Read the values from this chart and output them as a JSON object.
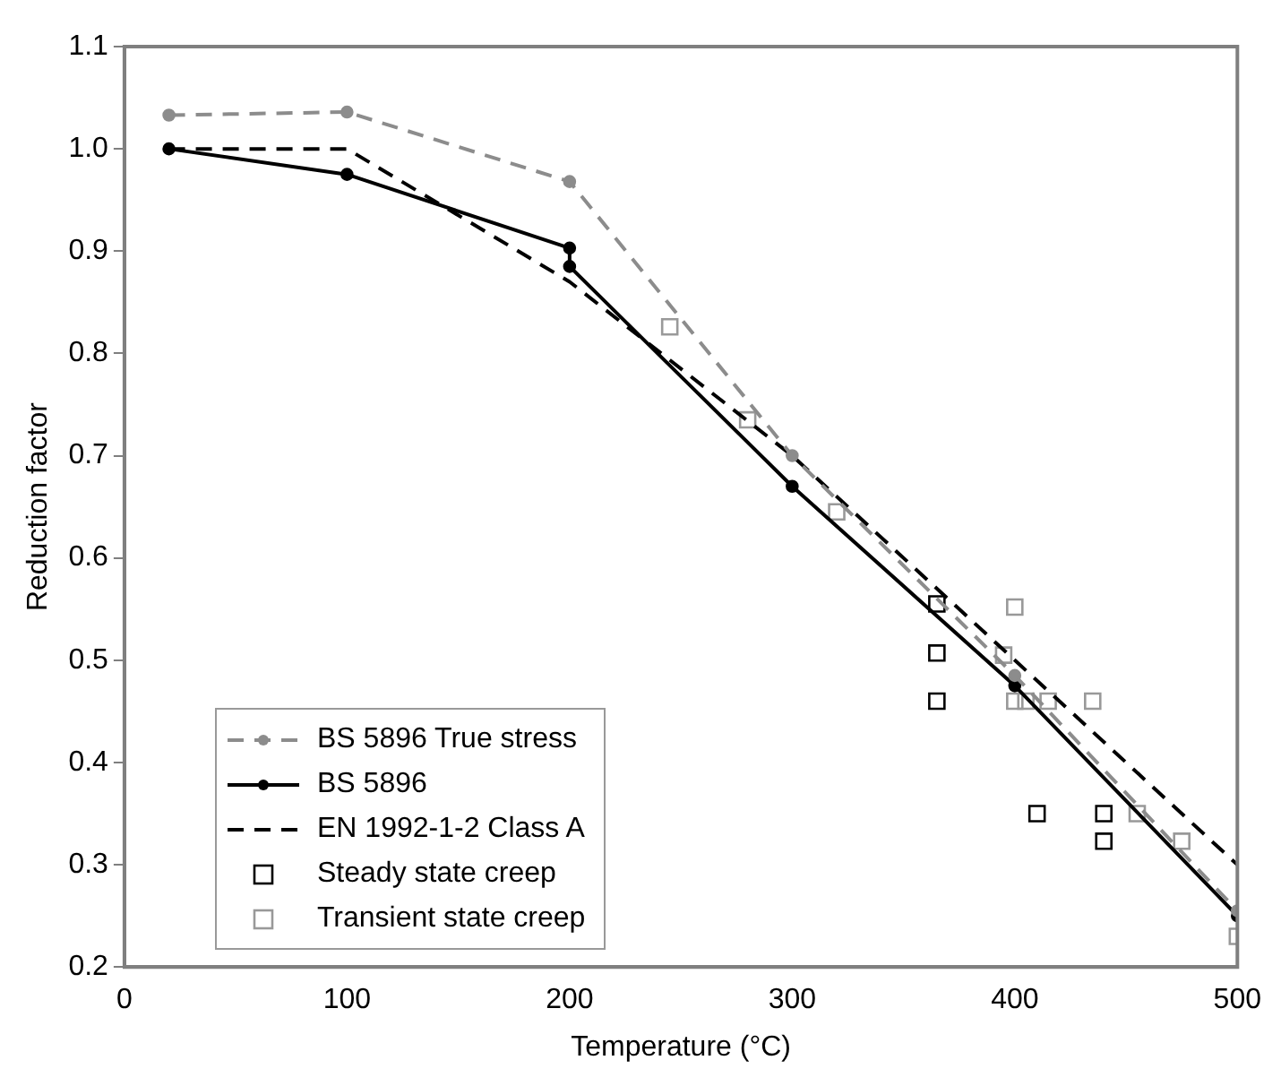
{
  "chart_data": {
    "type": "line",
    "xlabel": "Temperature (°C)",
    "ylabel": "Reduction factor",
    "xlim": [
      0,
      500
    ],
    "xticks": [
      0,
      100,
      200,
      300,
      400,
      500
    ],
    "ylim": [
      0.2,
      1.1
    ],
    "yticks": [
      0.2,
      0.3,
      0.4,
      0.5,
      0.6,
      0.7,
      0.8,
      0.9,
      {
        "value": 1,
        "label": "1.0"
      },
      1.1
    ],
    "grid": false,
    "legend": "bottom left",
    "series": [
      {
        "name": "BS 5896 True stress",
        "color": "#8c8c8c",
        "marker": "circle",
        "line_style": "dashed",
        "x": [
          20,
          100,
          200,
          300,
          400,
          500
        ],
        "values": [
          1.033,
          1.036,
          0.968,
          0.7,
          0.485,
          0.255
        ]
      },
      {
        "name": "BS 5896",
        "color": "#000000",
        "marker": "circle",
        "line_style": "solid",
        "x": [
          20,
          100,
          200,
          200,
          300,
          400,
          500
        ],
        "values": [
          1.0,
          0.975,
          0.903,
          0.885,
          0.67,
          0.475,
          0.25
        ]
      },
      {
        "name": "EN 1992-1-2 Class A",
        "color": "#000000",
        "marker": "none",
        "line_style": "dashed",
        "x": [
          20,
          100,
          200,
          300,
          400,
          500
        ],
        "values": [
          1.0,
          1.0,
          0.87,
          0.7,
          0.5,
          0.3
        ]
      },
      {
        "name": "Steady state creep",
        "type": "scatter",
        "color": "#000000",
        "marker": "square",
        "x": [
          365,
          365,
          365,
          410,
          440,
          440
        ],
        "values": [
          0.555,
          0.507,
          0.46,
          0.35,
          0.35,
          0.323
        ]
      },
      {
        "name": "Transient state creep",
        "type": "scatter",
        "color": "#999999",
        "marker": "square",
        "x": [
          245,
          280,
          320,
          395,
          400,
          400,
          405,
          415,
          435,
          455,
          475,
          500
        ],
        "values": [
          0.826,
          0.735,
          0.645,
          0.505,
          0.552,
          0.46,
          0.46,
          0.46,
          0.46,
          0.35,
          0.323,
          0.23
        ]
      }
    ]
  }
}
